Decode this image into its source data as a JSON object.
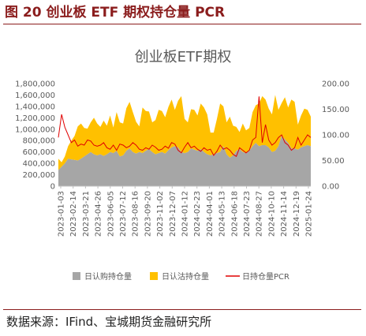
{
  "figure": {
    "label": "图 20 创业板 ETF 期权持仓量 PCR",
    "source": "数据来源：IFind、宝城期货金融研究所"
  },
  "chart_data": {
    "type": "area",
    "title": "创业板ETF期权",
    "series": [
      {
        "name": "日认购持仓量",
        "type": "area",
        "axis": "left",
        "color": "#a6a6a6",
        "values": [
          280000,
          340000,
          400000,
          480000,
          470000,
          460000,
          450000,
          480000,
          520000,
          560000,
          600000,
          560000,
          540000,
          560000,
          530000,
          560000,
          600000,
          580000,
          620000,
          520000,
          540000,
          620000,
          660000,
          600000,
          570000,
          600000,
          580000,
          620000,
          650000,
          600000,
          560000,
          580000,
          600000,
          570000,
          630000,
          680000,
          700000,
          680000,
          600000,
          580000,
          600000,
          660000,
          640000,
          620000,
          650000,
          600000,
          560000,
          540000,
          560000,
          580000,
          600000,
          700000,
          560000,
          500000,
          540000,
          620000,
          650000,
          600000,
          580000,
          620000,
          700000,
          760000,
          700000,
          720000,
          720000,
          680000,
          600000,
          620000,
          700000,
          880000,
          820000,
          760000,
          660000,
          660000,
          640000,
          680000,
          700000,
          720000,
          700000
        ]
      },
      {
        "name": "日认沽持仓量",
        "type": "area",
        "axis": "left",
        "color": "#ffc000",
        "values": [
          200000,
          80000,
          120000,
          220000,
          330000,
          420000,
          600000,
          620000,
          500000,
          450000,
          520000,
          640000,
          560000,
          480000,
          620000,
          500000,
          640000,
          450000,
          680000,
          600000,
          560000,
          750000,
          820000,
          700000,
          560000,
          450000,
          800000,
          700000,
          660000,
          520000,
          600000,
          760000,
          720000,
          640000,
          760000,
          840000,
          640000,
          820000,
          980000,
          600000,
          520000,
          690000,
          700000,
          620000,
          800000,
          780000,
          700000,
          400000,
          380000,
          600000,
          850000,
          700000,
          560000,
          720000,
          520000,
          420000,
          300000,
          500000,
          400000,
          400000,
          600000,
          660000,
          750000,
          860000,
          800000,
          680000,
          660000,
          980000,
          640000,
          580000,
          740000,
          620000,
          860000,
          820000,
          440000,
          560000,
          660000,
          620000,
          520000
        ]
      },
      {
        "name": "日持仓量PCR",
        "type": "line",
        "axis": "right",
        "color": "#e00000",
        "values": [
          95,
          140,
          115,
          100,
          85,
          90,
          78,
          82,
          80,
          90,
          88,
          80,
          78,
          80,
          85,
          75,
          72,
          80,
          70,
          82,
          80,
          75,
          78,
          85,
          80,
          72,
          70,
          75,
          72,
          80,
          76,
          70,
          72,
          78,
          74,
          85,
          82,
          70,
          65,
          76,
          85,
          75,
          78,
          72,
          68,
          75,
          70,
          72,
          60,
          68,
          80,
          72,
          75,
          70,
          62,
          58,
          75,
          70,
          65,
          70,
          90,
          95,
          175,
          85,
          120,
          90,
          80,
          85,
          95,
          100,
          85,
          80,
          70,
          75,
          95,
          80,
          90,
          100,
          95
        ]
      }
    ],
    "x_tick_labels": [
      "2023-01-03",
      "2023-02-14",
      "2023-03-21",
      "2023-04-26",
      "2023-06-05",
      "2023-07-12",
      "2023-08-16",
      "2023-09-20",
      "2023-11-02",
      "2023-12-07",
      "2024-01-12",
      "2024-02-23",
      "2024-04-01",
      "2024-05-13",
      "2024-06-18",
      "2024-07-23",
      "2024-08-27",
      "2024-10-10",
      "2024-11-14",
      "2024-12-19",
      "2025-01-24"
    ],
    "y_left": {
      "min": 0,
      "max": 1800000,
      "ticks": [
        "0",
        "200,000",
        "400,000",
        "600,000",
        "800,000",
        "1,000,000",
        "1,200,000",
        "1,400,000",
        "1,600,000",
        "1,800,000"
      ]
    },
    "y_right": {
      "min": 0,
      "max": 200,
      "ticks": [
        "0.00",
        "50.00",
        "100.00",
        "150.00",
        "200.00"
      ]
    },
    "legend_position": "bottom"
  }
}
